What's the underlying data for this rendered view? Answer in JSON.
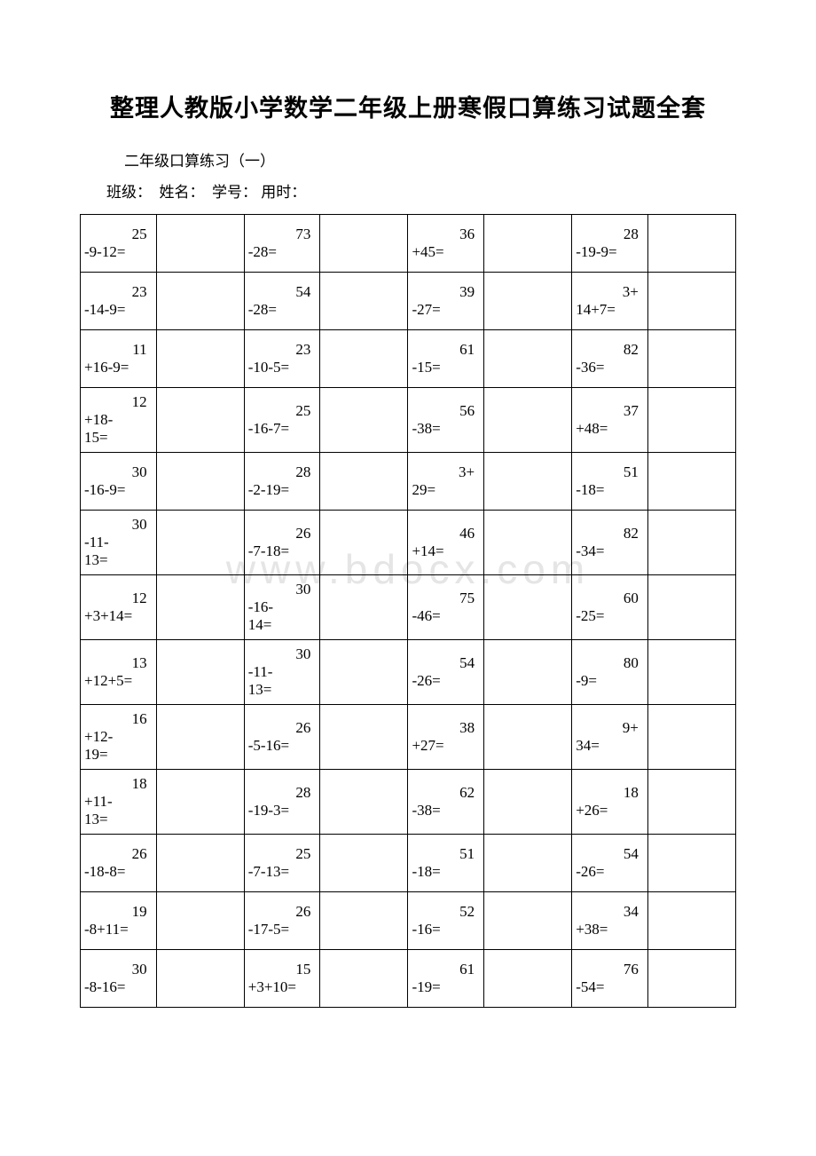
{
  "title": "整理人教版小学数学二年级上册寒假口算练习试题全套",
  "subtitle": "二年级口算练习（一）",
  "info_line": "班级：　姓名：　学号：  用时：",
  "watermark": "www.bdocx.com",
  "rows": [
    {
      "c1n": "25",
      "c1e": "-9-12=",
      "c2n": "73",
      "c2e": "-28=",
      "c3n": "36",
      "c3e": "+45=",
      "c4n": "28",
      "c4e": "-19-9="
    },
    {
      "c1n": "23",
      "c1e": "-14-9=",
      "c2n": "54",
      "c2e": "-28=",
      "c3n": "39",
      "c3e": "-27=",
      "c4n": "3+",
      "c4e": "14+7="
    },
    {
      "c1n": "11",
      "c1e": "+16-9=",
      "c2n": "23",
      "c2e": "-10-5=",
      "c3n": "61",
      "c3e": "-15=",
      "c4n": "82",
      "c4e": "-36="
    },
    {
      "c1n": "12",
      "c1e": "+18-\n15=",
      "c2n": "25",
      "c2e": "-16-7=",
      "c3n": "56",
      "c3e": "-38=",
      "c4n": "37",
      "c4e": "+48="
    },
    {
      "c1n": "30",
      "c1e": "-16-9=",
      "c2n": "28",
      "c2e": "-2-19=",
      "c3n": "3+",
      "c3e": "29=",
      "c4n": "51",
      "c4e": "-18="
    },
    {
      "c1n": "30",
      "c1e": "-11-\n13=",
      "c2n": "26",
      "c2e": "-7-18=",
      "c3n": "46",
      "c3e": "+14=",
      "c4n": "82",
      "c4e": "-34="
    },
    {
      "c1n": "12",
      "c1e": "+3+14=",
      "c2n": "30",
      "c2e": "-16-\n14=",
      "c3n": "75",
      "c3e": "-46=",
      "c4n": "60",
      "c4e": "-25="
    },
    {
      "c1n": "13",
      "c1e": "+12+5=",
      "c2n": "30",
      "c2e": "-11-\n13=",
      "c3n": "54",
      "c3e": "-26=",
      "c4n": "80",
      "c4e": "-9="
    },
    {
      "c1n": "16",
      "c1e": "+12-\n19=",
      "c2n": "26",
      "c2e": "-5-16=",
      "c3n": "38",
      "c3e": "+27=",
      "c4n": "9+",
      "c4e": "34="
    },
    {
      "c1n": "18",
      "c1e": "+11-\n13=",
      "c2n": "28",
      "c2e": "-19-3=",
      "c3n": "62",
      "c3e": "-38=",
      "c4n": "18",
      "c4e": "+26="
    },
    {
      "c1n": "26",
      "c1e": "-18-8=",
      "c2n": "25",
      "c2e": "-7-13=",
      "c3n": "51",
      "c3e": "-18=",
      "c4n": "54",
      "c4e": "-26="
    },
    {
      "c1n": "19",
      "c1e": "-8+11=",
      "c2n": "26",
      "c2e": "-17-5=",
      "c3n": "52",
      "c3e": "-16=",
      "c4n": "34",
      "c4e": "+38="
    },
    {
      "c1n": "30",
      "c1e": "-8-16=",
      "c2n": "15",
      "c2e": "+3+10=",
      "c3n": "61",
      "c3e": "-19=",
      "c4n": "76",
      "c4e": "-54="
    }
  ]
}
